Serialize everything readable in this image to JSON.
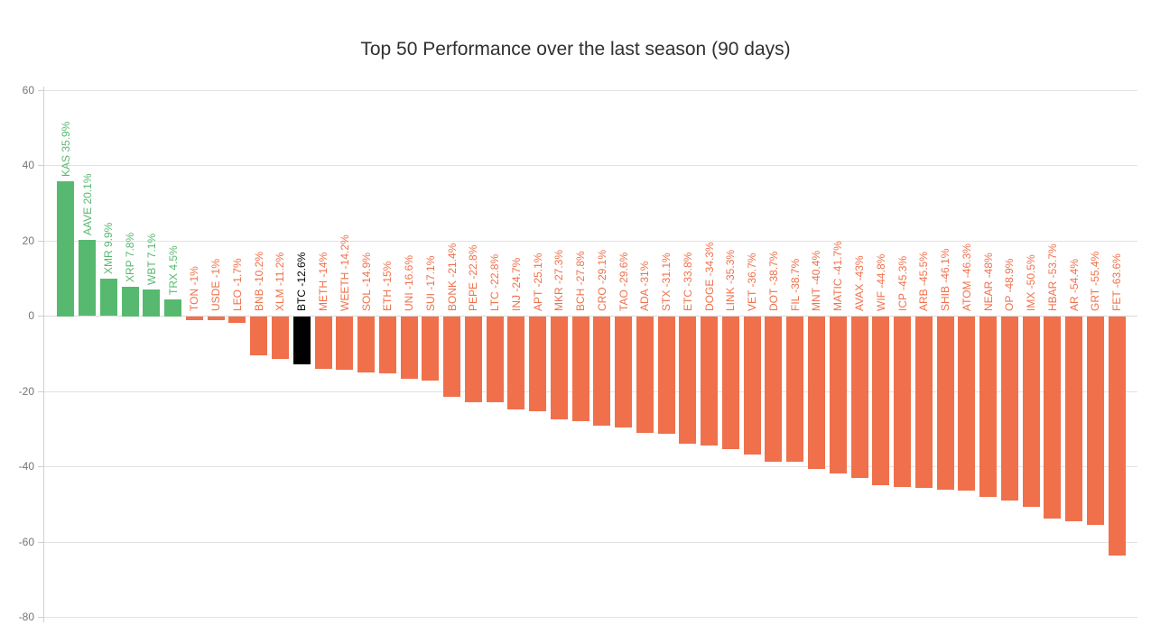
{
  "chart_data": {
    "type": "bar",
    "title": "Top 50 Performance over the last season (90 days)",
    "xlabel": "",
    "ylabel": "",
    "ylim": [
      -80,
      60
    ],
    "yticks": [
      60,
      40,
      20,
      0,
      -20,
      -40,
      -60,
      -80
    ],
    "grid": "horizontal",
    "legend_position": "none",
    "highlight_category": "BTC",
    "categories": [
      "KAS",
      "AAVE",
      "XMR",
      "XRP",
      "WBT",
      "TRX",
      "TON",
      "USDE",
      "LEO",
      "BNB",
      "XLM",
      "BTC",
      "METH",
      "WEETH",
      "SOL",
      "ETH",
      "UNI",
      "SUI",
      "BONK",
      "PEPE",
      "LTC",
      "INJ",
      "APT",
      "MKR",
      "BCH",
      "CRO",
      "TAO",
      "ADA",
      "STX",
      "ETC",
      "DOGE",
      "LINK",
      "VET",
      "DOT",
      "FIL",
      "MNT",
      "MATIC",
      "AVAX",
      "WIF",
      "ICP",
      "ARB",
      "SHIB",
      "ATOM",
      "NEAR",
      "OP",
      "IMX",
      "HBAR",
      "AR",
      "GRT",
      "FET"
    ],
    "values": [
      35.9,
      20.1,
      9.9,
      7.8,
      7.1,
      4.5,
      -1,
      -1,
      -1.7,
      -10.2,
      -11.2,
      -12.6,
      -14,
      -14.2,
      -14.9,
      -15,
      -16.6,
      -17.1,
      -21.4,
      -22.8,
      -22.8,
      -24.7,
      -25.1,
      -27.3,
      -27.8,
      -29.1,
      -29.6,
      -31,
      -31.1,
      -33.8,
      -34.3,
      -35.3,
      -36.7,
      -38.7,
      -38.7,
      -40.4,
      -41.7,
      -43,
      -44.8,
      -45.3,
      -45.5,
      -46.1,
      -46.3,
      -48,
      -48.9,
      -50.5,
      -53.7,
      -54.4,
      -55.4,
      -63.6
    ],
    "labels": [
      "KAS 35.9%",
      "AAVE 20.1%",
      "XMR 9.9%",
      "XRP 7.8%",
      "WBT 7.1%",
      "TRX 4.5%",
      "TON -1%",
      "USDE -1%",
      "LEO -1.7%",
      "BNB -10.2%",
      "XLM -11.2%",
      "BTC -12.6%",
      "METH -14%",
      "WEETH -14.2%",
      "SOL -14.9%",
      "ETH -15%",
      "UNI -16.6%",
      "SUI -17.1%",
      "BONK -21.4%",
      "PEPE -22.8%",
      "LTC -22.8%",
      "INJ -24.7%",
      "APT -25.1%",
      "MKR -27.3%",
      "BCH -27.8%",
      "CRO -29.1%",
      "TAO -29.6%",
      "ADA -31%",
      "STX -31.1%",
      "ETC -33.8%",
      "DOGE -34.3%",
      "LINK -35.3%",
      "VET -36.7%",
      "DOT -38.7%",
      "FIL -38.7%",
      "MNT -40.4%",
      "MATIC -41.7%",
      "AVAX -43%",
      "WIF -44.8%",
      "ICP -45.3%",
      "ARB -45.5%",
      "SHIB -46.1%",
      "ATOM -46.3%",
      "NEAR -48%",
      "OP -48.9%",
      "IMX -50.5%",
      "HBAR -53.7%",
      "AR -54.4%",
      "GRT -55.4%",
      "FET -63.6%"
    ],
    "colors": {
      "positive": "#57b96f",
      "negative": "#f0704b",
      "highlight": "#000000",
      "gridline": "#e3e3e3",
      "zero_line": "#d9d9d9",
      "axis_line": "#cfcfcf",
      "tick_label": "#757575",
      "title": "#303030"
    }
  }
}
